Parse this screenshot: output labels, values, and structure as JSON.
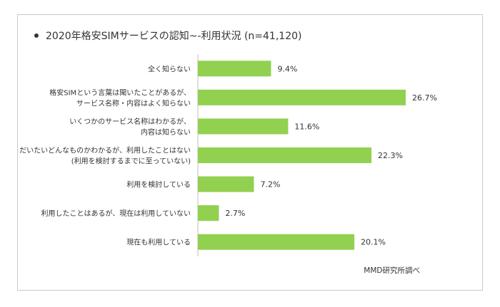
{
  "chart_data": {
    "type": "bar",
    "orientation": "horizontal",
    "title": "2020年格安SIMサービスの認知~-利用状況 (n=41,120)",
    "categories": [
      [
        "全く知らない"
      ],
      [
        "格安SIMという言葉は聞いたことがあるが、",
        "サービス名称・内容はよく知らない"
      ],
      [
        "いくつかのサービス名称はわかるが、",
        "内容は知らない"
      ],
      [
        "だいたいどんなものかわかるが、利用したことはない",
        "(利用を検討するまでに至っていない)"
      ],
      [
        "利用を検討している"
      ],
      [
        "利用したことはあるが、現在は利用していない"
      ],
      [
        "現在も利用している"
      ]
    ],
    "values": [
      9.4,
      26.7,
      11.6,
      22.3,
      7.2,
      2.7,
      20.1
    ],
    "value_labels": [
      "9.4%",
      "26.7%",
      "11.6%",
      "22.3%",
      "7.2%",
      "2.7%",
      "20.1%"
    ],
    "unit": "%",
    "grid": false,
    "legend": "none",
    "bar_color": "#92d050",
    "axis_color": "#bfbfbf",
    "source": "MMD研究所調べ"
  }
}
